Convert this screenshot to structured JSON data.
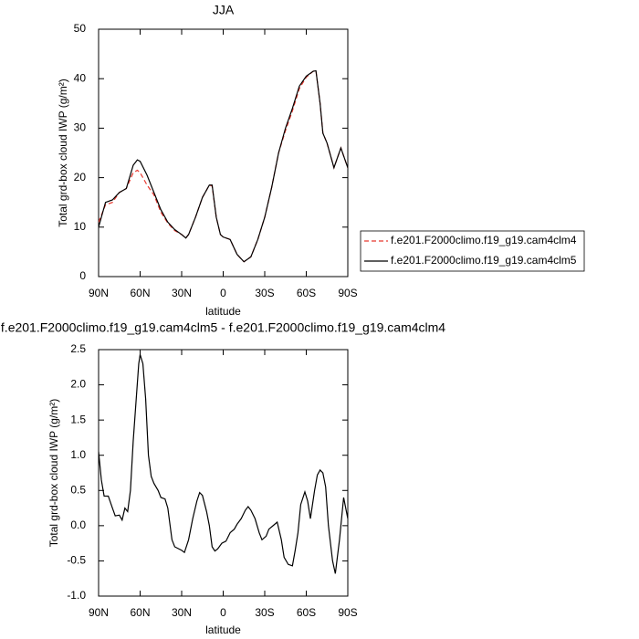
{
  "chart_data": [
    {
      "type": "line",
      "title": "JJA",
      "xlabel": "latitude",
      "ylabel": "Total grd-box cloud IWP (g/m²)",
      "x": [
        90,
        85,
        80,
        75,
        70,
        65,
        62,
        60,
        55,
        50,
        45,
        40,
        35,
        30,
        27,
        25,
        20,
        15,
        10,
        8,
        5,
        2,
        0,
        -5,
        -10,
        -15,
        -20,
        -25,
        -30,
        -35,
        -40,
        -45,
        -50,
        -55,
        -60,
        -65,
        -67,
        -70,
        -72,
        -75,
        -80,
        -85,
        -90
      ],
      "series": [
        {
          "name": "f.e201.F2000climo.f19_g19.cam4clm4",
          "color": "#e8372e",
          "line_style": "dashed",
          "values": [
            11,
            14.5,
            15,
            17,
            17.8,
            21,
            21.5,
            21,
            18.5,
            16.5,
            13,
            10.8,
            9.3,
            8.5,
            7.8,
            8.5,
            12,
            16,
            18.5,
            18.3,
            12,
            8.5,
            8,
            7.5,
            4.5,
            3,
            4,
            7.5,
            12,
            18,
            25,
            29.5,
            33.5,
            38,
            40.3,
            41.5,
            41.6,
            35,
            29,
            27,
            22,
            26,
            22
          ]
        },
        {
          "name": "f.e201.F2000climo.f19_g19.cam4clm5",
          "color": "#000000",
          "line_style": "solid",
          "values": [
            10,
            15,
            15.5,
            17,
            17.8,
            22.5,
            23.6,
            23.3,
            20.5,
            17,
            13.5,
            11,
            9.5,
            8.5,
            7.8,
            8.5,
            12,
            16,
            18.5,
            18.5,
            12,
            8.5,
            8,
            7.5,
            4.5,
            3,
            4,
            7.5,
            12,
            18,
            25,
            30,
            34,
            38.5,
            40.5,
            41.5,
            41.6,
            35,
            29,
            27,
            22,
            26,
            22
          ]
        }
      ],
      "xlim": [
        90,
        -90
      ],
      "xticks": [
        {
          "value": 90,
          "label": "90N"
        },
        {
          "value": 60,
          "label": "60N"
        },
        {
          "value": 30,
          "label": "30N"
        },
        0,
        {
          "value": -30,
          "label": "30S"
        },
        {
          "value": -60,
          "label": "60S"
        },
        {
          "value": -90,
          "label": "90S"
        }
      ],
      "ylim": [
        0,
        50
      ],
      "yticks": [
        0,
        10,
        20,
        30,
        40,
        50
      ],
      "legend_position": "right"
    },
    {
      "type": "line",
      "title": "f.e201.F2000climo.f19_g19.cam4clm5 - f.e201.F2000climo.f19_g19.cam4clm4",
      "xlabel": "latitude",
      "ylabel": "Total grd-box cloud IWP (g/m²)",
      "x": [
        90,
        88,
        86,
        83,
        80,
        78,
        75,
        73,
        71,
        69,
        67,
        65,
        63,
        61,
        60,
        58,
        56,
        54,
        52,
        50,
        47,
        45,
        42,
        40,
        37,
        35,
        30,
        28,
        25,
        22,
        19,
        17,
        15,
        12,
        10,
        8,
        6,
        4,
        1,
        -2,
        -5,
        -8,
        -10,
        -13,
        -16,
        -18,
        -20,
        -23,
        -26,
        -28,
        -31,
        -33,
        -36,
        -39,
        -42,
        -44,
        -47,
        -50,
        -52,
        -54,
        -56,
        -59,
        -61,
        -63,
        -66,
        -68,
        -70,
        -72,
        -74,
        -76,
        -79,
        -81,
        -84,
        -87,
        -88,
        -90
      ],
      "values": [
        1.05,
        0.65,
        0.42,
        0.42,
        0.25,
        0.14,
        0.15,
        0.08,
        0.25,
        0.2,
        0.5,
        1.2,
        1.75,
        2.3,
        2.43,
        2.3,
        1.8,
        1.0,
        0.7,
        0.6,
        0.5,
        0.4,
        0.38,
        0.25,
        -0.2,
        -0.3,
        -0.35,
        -0.38,
        -0.2,
        0.1,
        0.35,
        0.47,
        0.43,
        0.2,
        0.0,
        -0.3,
        -0.36,
        -0.33,
        -0.25,
        -0.22,
        -0.1,
        -0.05,
        0.02,
        0.1,
        0.22,
        0.27,
        0.22,
        0.1,
        -0.1,
        -0.2,
        -0.15,
        -0.05,
        0.0,
        0.05,
        -0.2,
        -0.45,
        -0.55,
        -0.57,
        -0.35,
        -0.1,
        0.3,
        0.48,
        0.35,
        0.1,
        0.5,
        0.72,
        0.79,
        0.75,
        0.55,
        0.0,
        -0.5,
        -0.68,
        -0.2,
        0.4,
        0.3,
        0.1
      ],
      "color": "#000000",
      "xlim": [
        90,
        -90
      ],
      "xticks": [
        {
          "value": 90,
          "label": "90N"
        },
        {
          "value": 60,
          "label": "60N"
        },
        {
          "value": 30,
          "label": "30N"
        },
        0,
        {
          "value": -30,
          "label": "30S"
        },
        {
          "value": -60,
          "label": "60S"
        },
        {
          "value": -90,
          "label": "90S"
        }
      ],
      "ylim": [
        -1.0,
        2.5
      ],
      "yticks": [
        {
          "value": -1,
          "label": "-1.0"
        },
        -0.5,
        {
          "value": 0,
          "label": "0.0"
        },
        0.5,
        {
          "value": 1,
          "label": "1.0"
        },
        1.5,
        {
          "value": 2,
          "label": "2.0"
        },
        2.5
      ]
    }
  ]
}
